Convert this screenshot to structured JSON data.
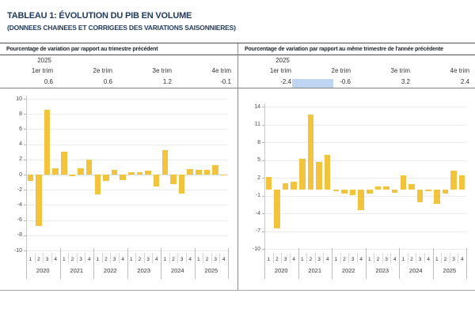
{
  "page": {
    "title": "TABLEAU 1: ÉVOLUTION DU PIB EN VOLUME",
    "subtitle": "(DONNEES CHAINEES ET CORRIGEES DES VARIATIONS SAISONNIERES)"
  },
  "colors": {
    "title_navy": "#1f3a5c",
    "bar_yellow": "#f2c43e",
    "selection_blue": "#bed6f2"
  },
  "panels": [
    {
      "header": "Pourcentage de variation par rapport au trimestre précédent",
      "year_label": "2025",
      "columns": [
        "1er trim",
        "2e trim",
        "3e trim",
        "4e trim"
      ],
      "values": [
        "0.6",
        "0.6",
        "1.2",
        "-0.1"
      ],
      "selection_highlight": false
    },
    {
      "header": "Pourcentage de variation par rapport au même trimestre de l'année précédente",
      "year_label": "2025",
      "columns": [
        "1er trim",
        "2e trim",
        "3e trim",
        "4e trim"
      ],
      "values": [
        "-2.4",
        "-0.6",
        "3.2",
        "2.4"
      ],
      "selection_highlight": true
    }
  ],
  "chart_data": [
    {
      "type": "bar",
      "title": "Pourcentage de variation par rapport au trimestre précédent",
      "x_years": [
        "2020",
        "2021",
        "2022",
        "2023",
        "2024",
        "2025"
      ],
      "quarters_per_year": [
        "1",
        "2",
        "3",
        "4"
      ],
      "values": [
        -0.8,
        -6.8,
        8.5,
        0.8,
        3.0,
        -0.2,
        0.8,
        2.0,
        -2.6,
        -0.8,
        0.6,
        -0.7,
        0.3,
        0.3,
        0.5,
        -1.6,
        3.2,
        -1.3,
        -2.5,
        0.7,
        0.6,
        0.6,
        1.2,
        -0.1
      ],
      "ylim": [
        -10,
        10
      ],
      "yticks": [
        10,
        8,
        6,
        4,
        2,
        0,
        -2,
        -4,
        -6,
        -8,
        -10
      ],
      "grid": true,
      "legend": false,
      "bar_color": "#f2c43e"
    },
    {
      "type": "bar",
      "title": "Pourcentage de variation par rapport au même trimestre de l'année précédente",
      "x_years": [
        "2020",
        "2021",
        "2022",
        "2023",
        "2024",
        "2025"
      ],
      "quarters_per_year": [
        "1",
        "2",
        "3",
        "4"
      ],
      "values": [
        2.1,
        -6.5,
        1.1,
        1.3,
        5.2,
        12.7,
        4.7,
        5.9,
        -0.2,
        -0.7,
        -0.9,
        -3.4,
        -0.7,
        0.6,
        0.6,
        -0.5,
        2.4,
        1.0,
        -2.1,
        -0.3,
        -2.4,
        -0.6,
        3.2,
        2.4
      ],
      "ylim": [
        -10,
        14
      ],
      "yticks": [
        14,
        11,
        8,
        5,
        2,
        -1,
        -4,
        -7,
        -10
      ],
      "grid": true,
      "legend": false,
      "bar_color": "#f2c43e"
    }
  ]
}
